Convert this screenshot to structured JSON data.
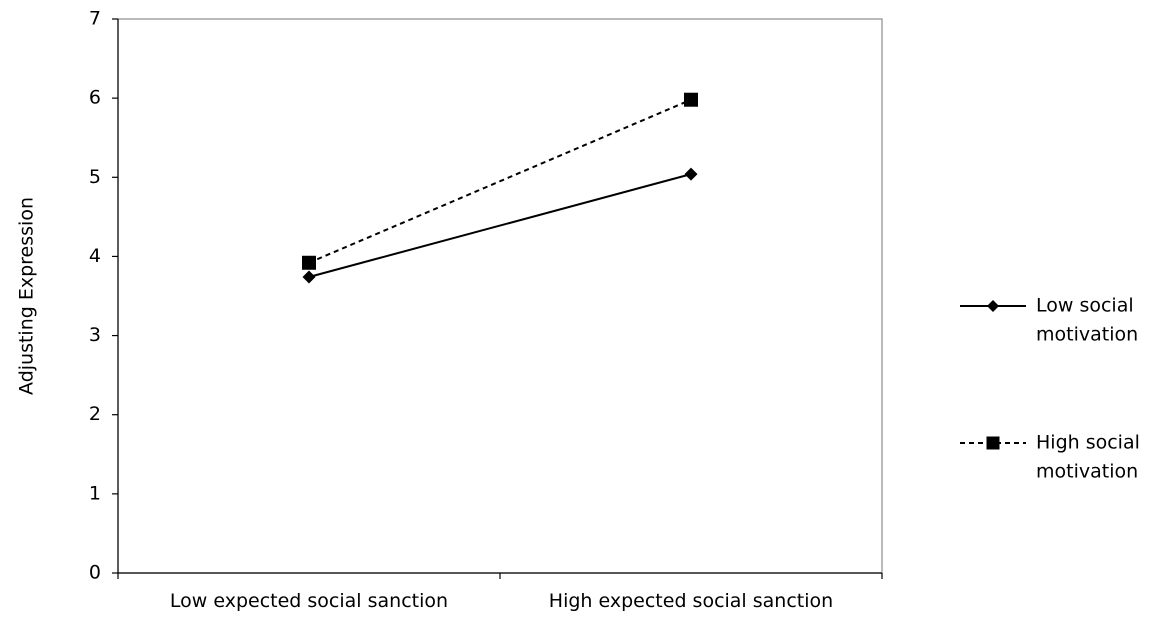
{
  "chart_data": {
    "type": "line",
    "title": "",
    "xlabel": "",
    "ylabel": "Adjusting Expression",
    "ylim": [
      0,
      7
    ],
    "yticks": [
      0,
      1,
      2,
      3,
      4,
      5,
      6,
      7
    ],
    "grid": false,
    "legend_position": "right",
    "categories": [
      "Low expected social sanction",
      "High expected social sanction"
    ],
    "series": [
      {
        "name_lines": [
          "Low social",
          "motivation"
        ],
        "values": [
          3.74,
          5.04
        ],
        "marker": "diamond",
        "line_style": "solid",
        "color": "#000000"
      },
      {
        "name_lines": [
          "High social",
          "motivation"
        ],
        "values": [
          3.92,
          5.98
        ],
        "marker": "square",
        "line_style": "dashed",
        "color": "#000000"
      }
    ]
  }
}
